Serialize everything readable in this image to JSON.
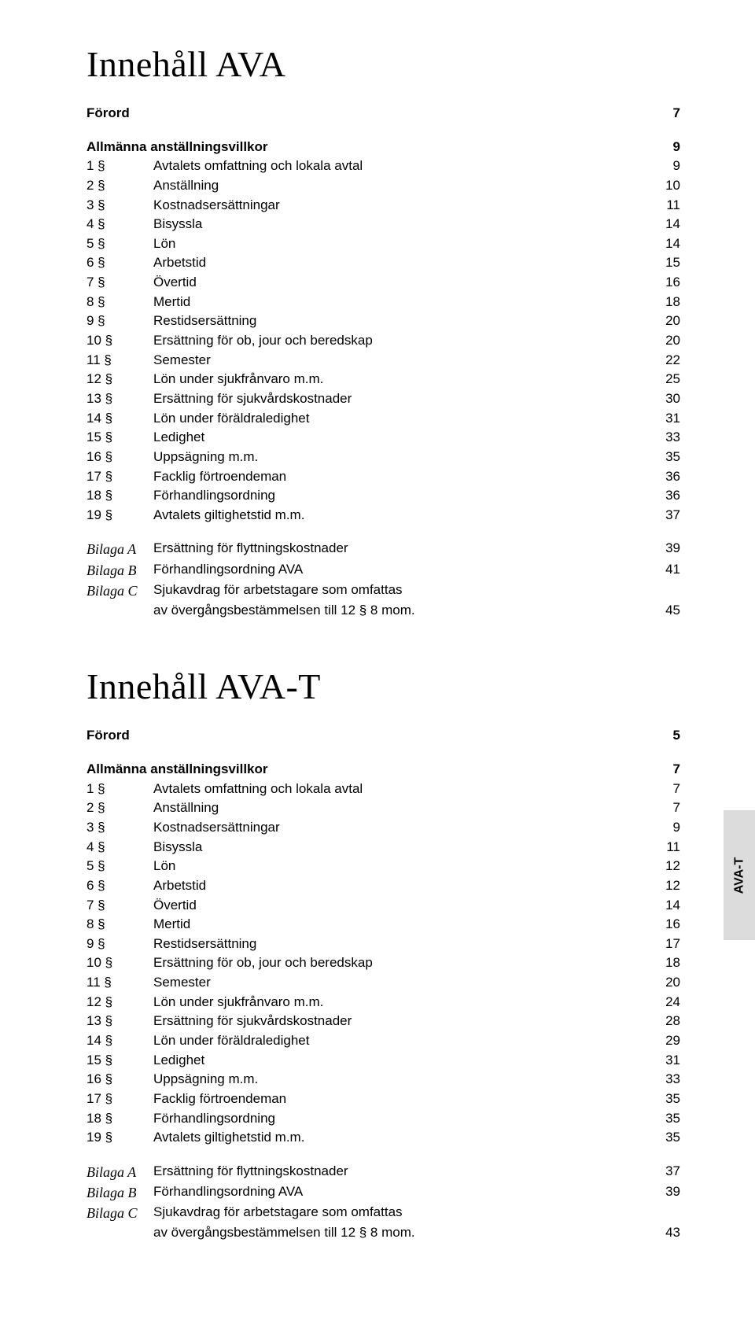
{
  "tab_label": "AVA-T",
  "colors": {
    "background": "#ffffff",
    "text": "#000000",
    "tab_bg": "#dcdcdc"
  },
  "sections": [
    {
      "title": "Innehåll AVA",
      "forord": {
        "label": "Förord",
        "page": "7"
      },
      "group": {
        "heading": "Allmänna anställningsvillkor",
        "heading_page": "9",
        "items": [
          {
            "num": "1 §",
            "label": "Avtalets omfattning och lokala avtal",
            "page": "9"
          },
          {
            "num": "2 §",
            "label": "Anställning",
            "page": "10"
          },
          {
            "num": "3 §",
            "label": "Kostnadsersättningar",
            "page": "11"
          },
          {
            "num": "4 §",
            "label": "Bisyssla",
            "page": "14"
          },
          {
            "num": "5 §",
            "label": "Lön",
            "page": "14"
          },
          {
            "num": "6 §",
            "label": "Arbetstid",
            "page": "15"
          },
          {
            "num": "7 §",
            "label": "Övertid",
            "page": "16"
          },
          {
            "num": "8 §",
            "label": "Mertid",
            "page": "18"
          },
          {
            "num": "9 §",
            "label": "Restidsersättning",
            "page": "20"
          },
          {
            "num": "10 §",
            "label": "Ersättning för ob, jour och beredskap",
            "page": "20"
          },
          {
            "num": "11 §",
            "label": "Semester",
            "page": "22"
          },
          {
            "num": "12 §",
            "label": "Lön under sjukfrånvaro m.m.",
            "page": "25"
          },
          {
            "num": "13 §",
            "label": "Ersättning för sjukvårdskostnader",
            "page": "30"
          },
          {
            "num": "14 §",
            "label": "Lön under föräldraledighet",
            "page": "31"
          },
          {
            "num": "15 §",
            "label": "Ledighet",
            "page": "33"
          },
          {
            "num": "16 §",
            "label": "Uppsägning m.m.",
            "page": "35"
          },
          {
            "num": "17 §",
            "label": "Facklig förtroendeman",
            "page": "36"
          },
          {
            "num": "18 §",
            "label": "Förhandlingsordning",
            "page": "36"
          },
          {
            "num": "19 §",
            "label": "Avtalets giltighetstid m.m.",
            "page": "37"
          }
        ]
      },
      "bilagor": [
        {
          "num": "Bilaga A",
          "label": "Ersättning för flyttningskostnader",
          "page": "39"
        },
        {
          "num": "Bilaga B",
          "label": "Förhandlingsordning AVA",
          "page": "41"
        },
        {
          "num": "Bilaga C",
          "label": "Sjukavdrag för arbetstagare som omfattas",
          "page": ""
        },
        {
          "num": "",
          "label": "av övergångsbestämmelsen till 12 § 8 mom.",
          "page": "45"
        }
      ]
    },
    {
      "title": "Innehåll AVA-T",
      "forord": {
        "label": "Förord",
        "page": "5"
      },
      "group": {
        "heading": "Allmänna anställningsvillkor",
        "heading_page": "7",
        "items": [
          {
            "num": "1 §",
            "label": "Avtalets omfattning och lokala avtal",
            "page": "7"
          },
          {
            "num": "2 §",
            "label": "Anställning",
            "page": "7"
          },
          {
            "num": "3 §",
            "label": "Kostnadsersättningar",
            "page": "9"
          },
          {
            "num": "4 §",
            "label": "Bisyssla",
            "page": "11"
          },
          {
            "num": "5 §",
            "label": "Lön",
            "page": "12"
          },
          {
            "num": "6 §",
            "label": "Arbetstid",
            "page": "12"
          },
          {
            "num": "7 §",
            "label": "Övertid",
            "page": "14"
          },
          {
            "num": "8 §",
            "label": "Mertid",
            "page": "16"
          },
          {
            "num": "9 §",
            "label": "Restidsersättning",
            "page": "17"
          },
          {
            "num": "10 §",
            "label": "Ersättning för ob, jour och beredskap",
            "page": "18"
          },
          {
            "num": "11 §",
            "label": "Semester",
            "page": "20"
          },
          {
            "num": "12 §",
            "label": "Lön under sjukfrånvaro m.m.",
            "page": "24"
          },
          {
            "num": "13 §",
            "label": "Ersättning för sjukvårdskostnader",
            "page": "28"
          },
          {
            "num": "14 §",
            "label": "Lön under föräldraledighet",
            "page": "29"
          },
          {
            "num": "15 §",
            "label": "Ledighet",
            "page": "31"
          },
          {
            "num": "16 §",
            "label": "Uppsägning m.m.",
            "page": "33"
          },
          {
            "num": "17 §",
            "label": "Facklig förtroendeman",
            "page": "35"
          },
          {
            "num": "18 §",
            "label": "Förhandlingsordning",
            "page": "35"
          },
          {
            "num": "19 §",
            "label": "Avtalets giltighetstid m.m.",
            "page": "35"
          }
        ]
      },
      "bilagor": [
        {
          "num": "Bilaga A",
          "label": "Ersättning för flyttningskostnader",
          "page": "37"
        },
        {
          "num": "Bilaga B",
          "label": "Förhandlingsordning AVA",
          "page": "39"
        },
        {
          "num": "Bilaga C",
          "label": "Sjukavdrag för arbetstagare som omfattas",
          "page": ""
        },
        {
          "num": "",
          "label": "av övergångsbestämmelsen till 12 § 8 mom.",
          "page": "43"
        }
      ]
    }
  ]
}
